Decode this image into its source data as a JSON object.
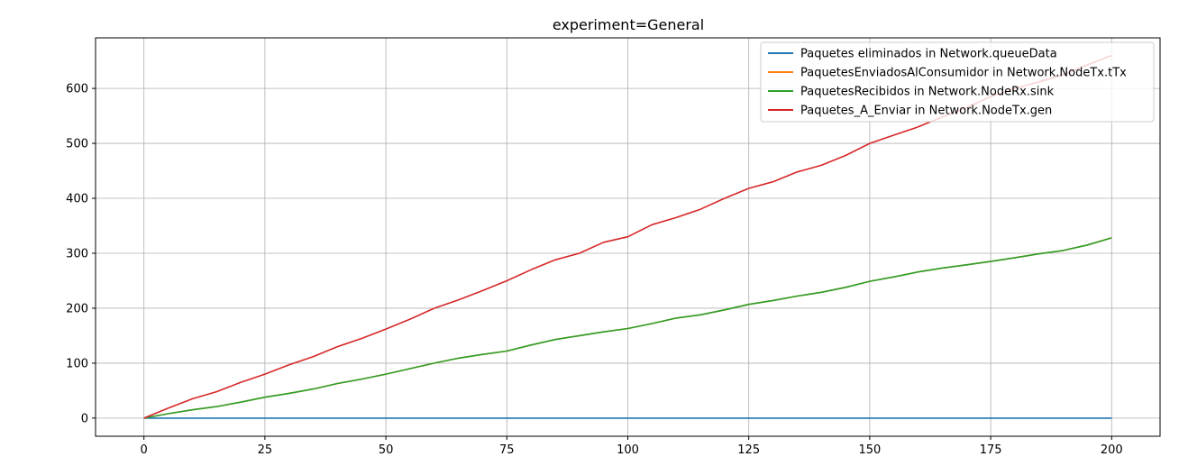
{
  "chart_data": {
    "type": "line",
    "title": "experiment=General",
    "xlabel": "",
    "ylabel": "",
    "xlim": [
      -10,
      210
    ],
    "ylim": [
      -33,
      692
    ],
    "xticks": [
      0,
      25,
      50,
      75,
      100,
      125,
      150,
      175,
      200
    ],
    "yticks": [
      0,
      100,
      200,
      300,
      400,
      500,
      600
    ],
    "grid": true,
    "legend_position": "top-right",
    "series": [
      {
        "name": "Paquetes eliminados in Network.queueData",
        "color": "#1f77b4",
        "x": [
          0,
          200
        ],
        "y": [
          0,
          0
        ]
      },
      {
        "name": "PaquetesEnviadosAlConsumidor in Network.NodeTx.tTx",
        "color": "#ff7f0e",
        "x": [
          0,
          5,
          10,
          15,
          20,
          25,
          30,
          35,
          40,
          45,
          50,
          55,
          60,
          65,
          70,
          75,
          80,
          85,
          90,
          95,
          100,
          105,
          110,
          115,
          120,
          125,
          130,
          135,
          140,
          145,
          150,
          155,
          160,
          165,
          170,
          175,
          180,
          185,
          190,
          195,
          200
        ],
        "y": [
          0,
          8,
          15,
          21,
          29,
          38,
          45,
          53,
          63,
          71,
          80,
          90,
          100,
          109,
          116,
          122,
          133,
          143,
          150,
          157,
          163,
          172,
          182,
          188,
          197,
          207,
          214,
          222,
          229,
          238,
          249,
          257,
          266,
          273,
          279,
          285,
          292,
          299,
          305,
          315,
          328
        ]
      },
      {
        "name": "PaquetesRecibidos in Network.NodeRx.sink",
        "color": "#2ca02c",
        "x": [
          0,
          5,
          10,
          15,
          20,
          25,
          30,
          35,
          40,
          45,
          50,
          55,
          60,
          65,
          70,
          75,
          80,
          85,
          90,
          95,
          100,
          105,
          110,
          115,
          120,
          125,
          130,
          135,
          140,
          145,
          150,
          155,
          160,
          165,
          170,
          175,
          180,
          185,
          190,
          195,
          200
        ],
        "y": [
          0,
          8,
          15,
          21,
          29,
          38,
          45,
          53,
          63,
          71,
          80,
          90,
          100,
          109,
          116,
          122,
          133,
          143,
          150,
          157,
          163,
          172,
          182,
          188,
          197,
          207,
          214,
          222,
          229,
          238,
          249,
          257,
          266,
          273,
          279,
          285,
          292,
          299,
          305,
          315,
          328
        ]
      },
      {
        "name": "Paquetes_A_Enviar in Network.NodeTx.gen",
        "color": "#d62728",
        "x": [
          0,
          5,
          10,
          15,
          20,
          25,
          30,
          35,
          40,
          45,
          50,
          55,
          60,
          65,
          70,
          75,
          80,
          85,
          90,
          95,
          100,
          105,
          110,
          115,
          120,
          125,
          130,
          135,
          140,
          145,
          150,
          155,
          160,
          165,
          170,
          175,
          180,
          185,
          190,
          195,
          200
        ],
        "y": [
          0,
          18,
          35,
          48,
          65,
          80,
          97,
          112,
          130,
          145,
          162,
          180,
          200,
          215,
          232,
          250,
          270,
          288,
          300,
          320,
          330,
          352,
          365,
          380,
          400,
          418,
          430,
          448,
          460,
          478,
          500,
          515,
          530,
          548,
          565,
          585,
          600,
          612,
          625,
          643,
          660
        ]
      }
    ]
  }
}
